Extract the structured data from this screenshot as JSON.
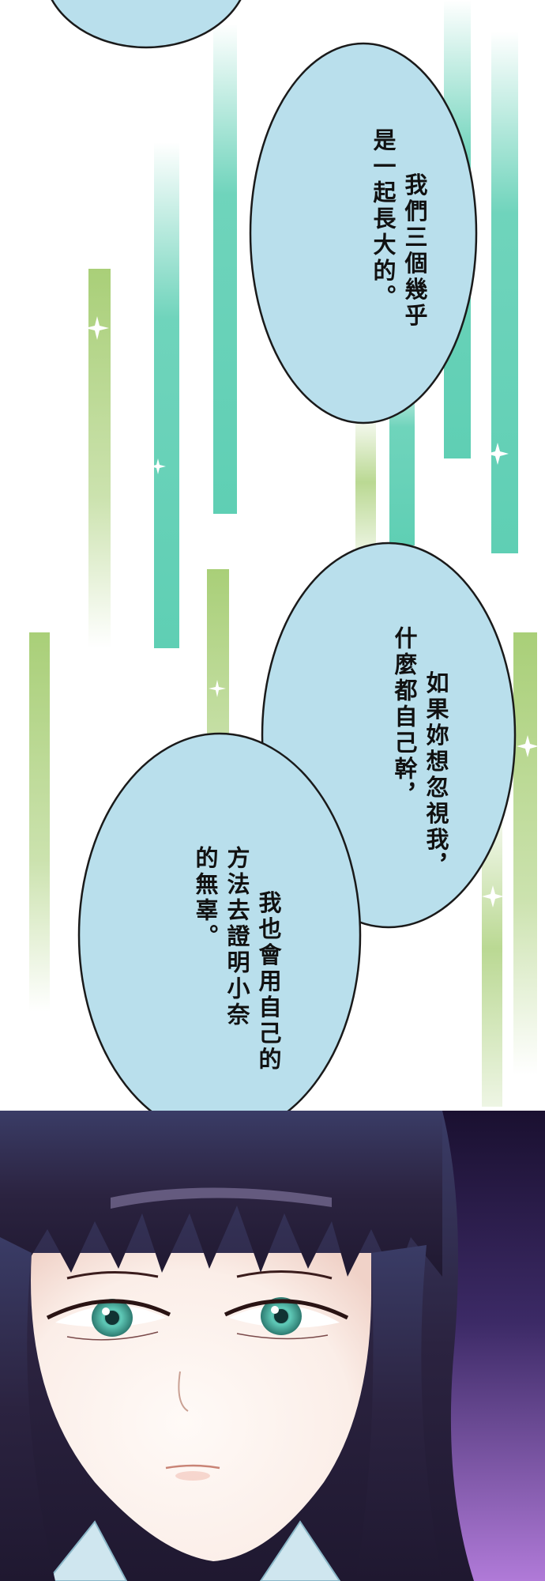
{
  "bubbles": {
    "top_partial": {
      "text": ""
    },
    "bubble_1": {
      "lines": [
        "我們三個幾乎",
        "是一起長大的。"
      ]
    },
    "bubble_2": {
      "lines": [
        "如果妳想忽視我，",
        "什麼都自己幹，"
      ]
    },
    "bubble_3": {
      "lines": [
        "我也會用自己的",
        "方法去證明小奈",
        "的無辜。"
      ]
    }
  },
  "colors": {
    "bubble_fill": "#b9dfec",
    "bubble_stroke": "#1a1a1a",
    "streak_teal": "#5fcfb4",
    "streak_green": "#a9cf78",
    "hair": "#2b2340",
    "eye": "#5fc9b7",
    "background_dark": "#2a1f4a",
    "background_violet": "#9b6cc9"
  },
  "icons": [
    "sparkle-icon"
  ]
}
